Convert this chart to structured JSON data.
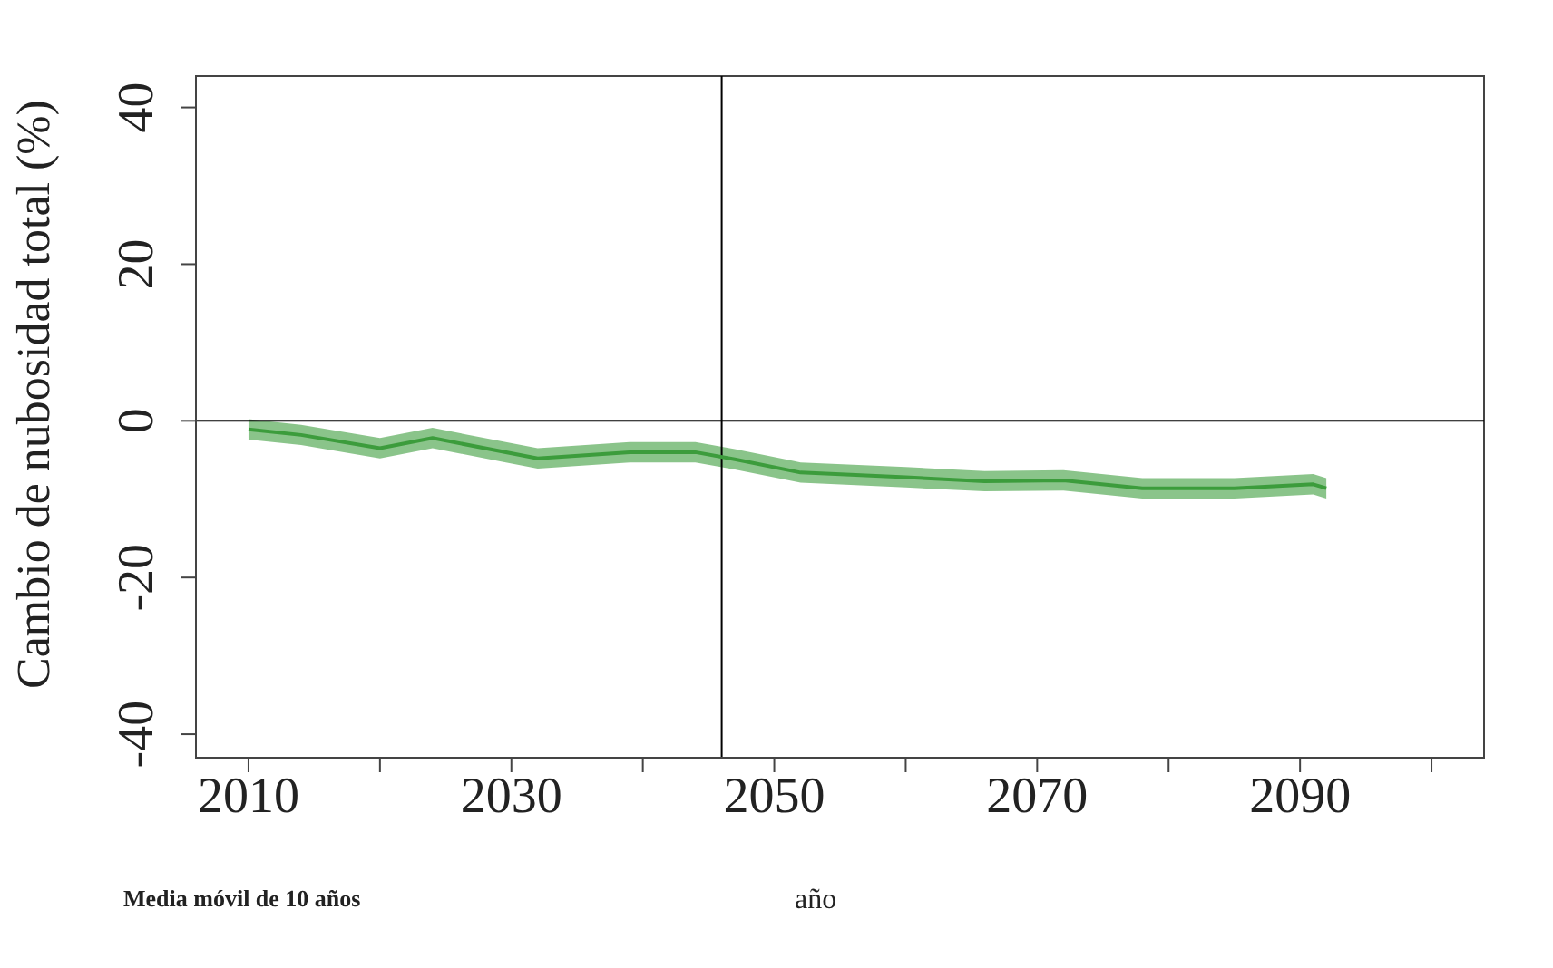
{
  "chart_data": {
    "type": "line",
    "xlabel": "año",
    "ylabel": "Cambio de nubosidad total (%)",
    "annotations": [
      "Media móvil de 10 años"
    ],
    "x": [
      2010,
      2014,
      2020,
      2024,
      2032,
      2039,
      2044,
      2047,
      2052,
      2060,
      2066,
      2072,
      2078,
      2085,
      2091,
      2092
    ],
    "series": [
      {
        "color": "#3c9c3c",
        "values": [
          -1.1,
          -1.8,
          -3.5,
          -2.2,
          -4.8,
          -4,
          -4,
          -4.9,
          -6.6,
          -7.2,
          -7.7,
          -7.6,
          -8.6,
          -8.6,
          -8.1,
          -8.6
        ],
        "lower": [
          -2.4,
          -3.1,
          -4.8,
          -3.5,
          -6.1,
          -5.3,
          -5.3,
          -6.2,
          -7.9,
          -8.5,
          -9,
          -8.9,
          -9.9,
          -9.9,
          -9.4,
          -9.9
        ],
        "upper": [
          0.2,
          -0.5,
          -2.2,
          -0.9,
          -3.5,
          -2.7,
          -2.7,
          -3.6,
          -5.3,
          -5.9,
          -6.4,
          -6.3,
          -7.3,
          -7.3,
          -6.8,
          -7.3
        ]
      }
    ],
    "xlim": [
      2006,
      2104
    ],
    "xticks": [
      2010,
      {
        "value": 2020,
        "label": null
      },
      2030,
      {
        "value": 2040,
        "label": null
      },
      2050,
      {
        "value": 2060,
        "label": null
      },
      2070,
      {
        "value": 2080,
        "label": null
      },
      2090,
      {
        "value": 2100,
        "label": null
      }
    ],
    "ylim": [
      -43,
      44
    ],
    "yticks": [
      -40,
      -20,
      0,
      20,
      40
    ],
    "ref_lines": [
      {
        "axis": "x",
        "value": 2046,
        "color": "#000000"
      },
      {
        "axis": "y",
        "value": 0,
        "color": "#000000"
      }
    ],
    "grid": false,
    "legend": false
  }
}
